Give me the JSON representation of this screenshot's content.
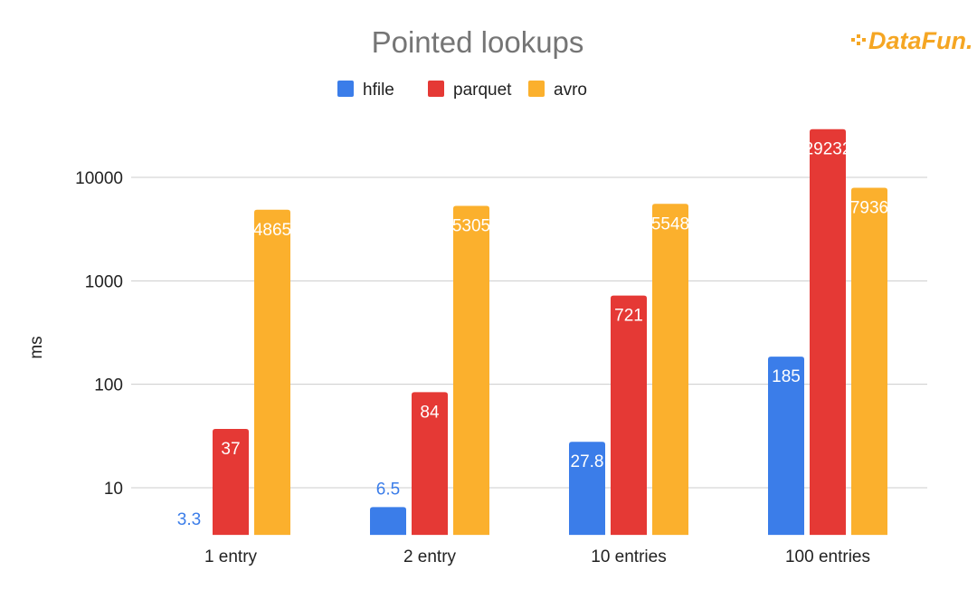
{
  "logo": {
    "text": "DataFun."
  },
  "chart_data": {
    "type": "bar",
    "title": "Pointed lookups",
    "xlabel": "",
    "ylabel": "ms",
    "yscale": "log",
    "ylim": [
      3.5,
      35000
    ],
    "yticks": [
      10,
      100,
      1000,
      10000
    ],
    "ytick_labels": [
      "10",
      "100",
      "1000",
      "10000"
    ],
    "grid": true,
    "legend_position": "top-center",
    "categories": [
      "1 entry",
      "2 entry",
      "10 entries",
      "100 entries"
    ],
    "series": [
      {
        "name": "hfile",
        "color": "#3b7de9",
        "values": [
          3.3,
          6.5,
          27.8,
          185
        ],
        "labels": [
          "3.3",
          "6.5",
          "27.8",
          "185"
        ]
      },
      {
        "name": "parquet",
        "color": "#e53935",
        "values": [
          37,
          84,
          721,
          29232
        ],
        "labels": [
          "37",
          "84",
          "721",
          "29232"
        ]
      },
      {
        "name": "avro",
        "color": "#fbb02d",
        "values": [
          4865,
          5305,
          5548,
          7936
        ],
        "labels": [
          "4865",
          "5305",
          "5548",
          "7936"
        ]
      }
    ]
  }
}
